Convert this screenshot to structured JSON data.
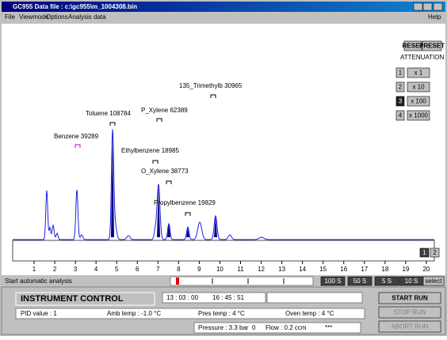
{
  "window": {
    "title": "GC955 Data file : c:\\gc955\\m_1004308.bin"
  },
  "menu": [
    "File",
    "Viewmode",
    "Options",
    "Analysis data",
    "Help"
  ],
  "peaks": [
    {
      "label": "Benzene 39289"
    },
    {
      "label": "Toluene 108784"
    },
    {
      "label": "P_Xylene 62389"
    },
    {
      "label": "Ethylbenzene 18985"
    },
    {
      "label": "O_Xylene 38773"
    },
    {
      "label": "Propylbenzene 19829"
    },
    {
      "label": "135_Trimethylb 30965"
    }
  ],
  "side_panel": {
    "reset": "RESET",
    "preset": "PRESET",
    "attenuation": "ATTENUATION",
    "buttons": [
      "1",
      "x 1",
      "2",
      "x 10",
      "3",
      "x 100",
      "4",
      "x 1000"
    ]
  },
  "zoom_buttons": [
    "1",
    "2"
  ],
  "axis_ticks": [
    1,
    2,
    3,
    4,
    5,
    6,
    7,
    8,
    9,
    10,
    11,
    12,
    13,
    14,
    15,
    16,
    17,
    18,
    19,
    20
  ],
  "status": {
    "message": "Start automatic analysis",
    "time_buttons": [
      "100 S",
      "50 S",
      "5 S",
      "10 S",
      "select"
    ]
  },
  "control": {
    "title": "INSTRUMENT CONTROL",
    "start_time": "13 : 03 : 00",
    "clock": "16 : 45 : 51",
    "start": "START RUN",
    "stop": "STOP RUN",
    "abort": "ABORT RUN",
    "pid": "PID value : 1",
    "amb": "Amb temp : -1.0 °C",
    "pres_temp": "Pres temp : 4 °C",
    "oven": "Oven temp : 4 °C",
    "pressure": "Pressure : 3.3 bar",
    "zero": "0",
    "flow": "Flow : 0.2 ccm",
    "stars": "***"
  }
}
